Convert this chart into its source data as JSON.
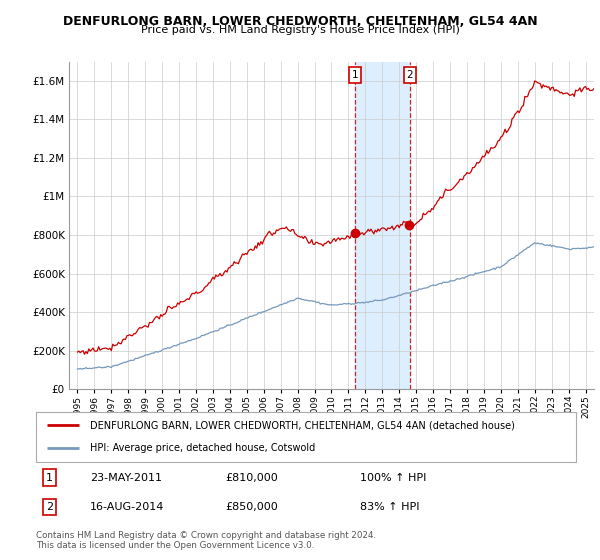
{
  "title1": "DENFURLONG BARN, LOWER CHEDWORTH, CHELTENHAM, GL54 4AN",
  "title2": "Price paid vs. HM Land Registry's House Price Index (HPI)",
  "legend_label1": "DENFURLONG BARN, LOWER CHEDWORTH, CHELTENHAM, GL54 4AN (detached house)",
  "legend_label2": "HPI: Average price, detached house, Cotswold",
  "annotation1": {
    "num": "1",
    "date": "23-MAY-2011",
    "price": "£810,000",
    "pct": "100% ↑ HPI",
    "year": 2011.38
  },
  "annotation2": {
    "num": "2",
    "date": "16-AUG-2014",
    "price": "£850,000",
    "pct": "83% ↑ HPI",
    "year": 2014.62
  },
  "footer1": "Contains HM Land Registry data © Crown copyright and database right 2024.",
  "footer2": "This data is licensed under the Open Government Licence v3.0.",
  "red_color": "#cc0000",
  "blue_color": "#7799bb",
  "highlight_color": "#ddeeff",
  "ymax": 1700000,
  "yticks": [
    0,
    200000,
    400000,
    600000,
    800000,
    1000000,
    1200000,
    1400000,
    1600000
  ],
  "ylabels": [
    "£0",
    "£200K",
    "£400K",
    "£600K",
    "£800K",
    "£1M",
    "£1.2M",
    "£1.4M",
    "£1.6M"
  ],
  "xmin": 1994.5,
  "xmax": 2025.5,
  "sale1_price": 810000,
  "sale2_price": 850000
}
